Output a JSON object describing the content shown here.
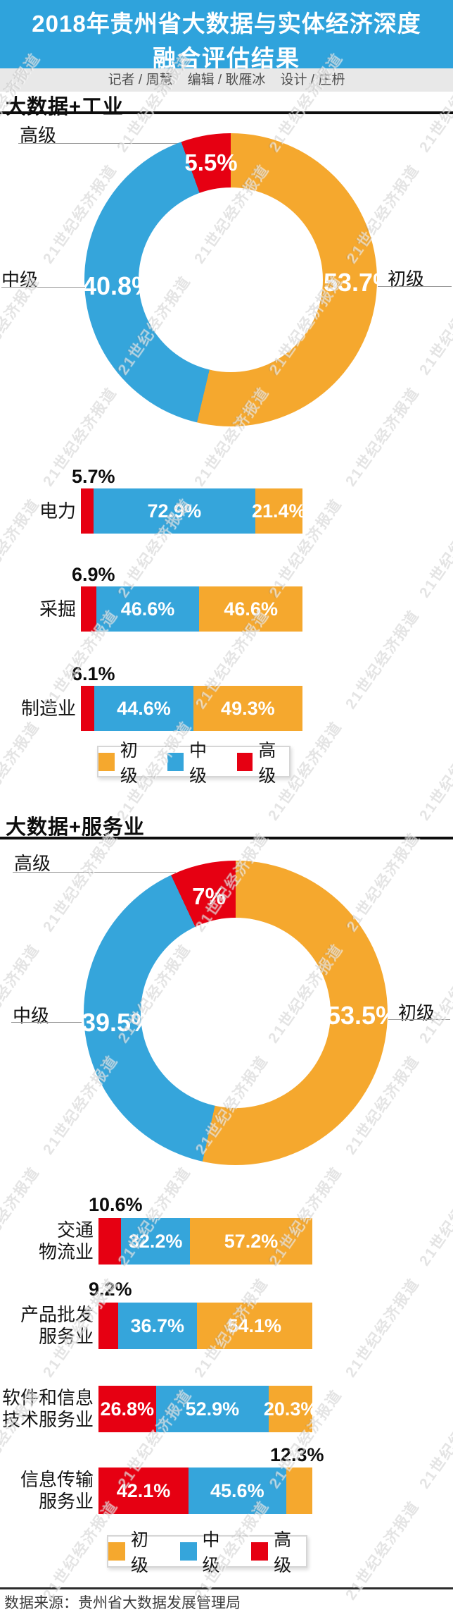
{
  "page": {
    "title_line1": "2018年贵州省大数据与实体经济深度",
    "title_line2": "融合评估结果",
    "credits": "记者 / 周慧    编辑 / 耿雁冰    设计 / 庄枬",
    "watermark_text": "21世纪经济报道",
    "source": "数据来源：贵州省大数据发展管理局"
  },
  "colors": {
    "header_bg": "#2FA3DC",
    "credits_bg": "#E8E8E8",
    "basic_orange": "#F5A82E",
    "intermediate_blue": "#35A5DB",
    "advanced_red": "#E60012",
    "heading_dark": "#0D0D0D"
  },
  "sections": [
    {
      "heading": "大数据+工业"
    },
    {
      "heading": "大数据+服务业"
    }
  ],
  "legend": {
    "items": [
      {
        "label": "初级",
        "color": "#F5A82E"
      },
      {
        "label": "中级",
        "color": "#35A5DB"
      },
      {
        "label": "高级",
        "color": "#E60012"
      }
    ]
  },
  "chart_data": [
    {
      "id": "industry-donut",
      "type": "pie",
      "donut": true,
      "title": "大数据+工业",
      "labels": [
        "初级",
        "中级",
        "高级"
      ],
      "values": [
        53.7,
        40.8,
        5.5
      ],
      "display_values": [
        "53.7%",
        "40.8%",
        "5.5%"
      ],
      "colors": [
        "#F5A82E",
        "#35A5DB",
        "#E60012"
      ],
      "legend_position": "none"
    },
    {
      "id": "industry-bars",
      "type": "bar",
      "stacked": true,
      "orientation": "horizontal",
      "title": "大数据+工业",
      "unit": "%",
      "xlim": [
        0,
        100
      ],
      "categories": [
        "电力",
        "采掘",
        "制造业"
      ],
      "category_lines": [
        [
          "电力"
        ],
        [
          "采掘"
        ],
        [
          "制造业"
        ]
      ],
      "series": [
        {
          "name": "高级",
          "color": "#E60012",
          "values": [
            5.7,
            6.9,
            6.1
          ],
          "display": [
            "5.7%",
            "6.9%",
            "6.1%"
          ]
        },
        {
          "name": "中级",
          "color": "#35A5DB",
          "values": [
            72.9,
            46.6,
            44.6
          ],
          "display": [
            "72.9%",
            "46.6%",
            "44.6%"
          ]
        },
        {
          "name": "初级",
          "color": "#F5A82E",
          "values": [
            21.4,
            46.6,
            49.3
          ],
          "display": [
            "21.4%",
            "46.6%",
            "49.3%"
          ]
        }
      ],
      "legend_position": "bottom"
    },
    {
      "id": "services-donut",
      "type": "pie",
      "donut": true,
      "title": "大数据+服务业",
      "labels": [
        "初级",
        "中级",
        "高级"
      ],
      "values": [
        53.5,
        39.5,
        7
      ],
      "display_values": [
        "53.5%",
        "39.5%",
        "7%"
      ],
      "colors": [
        "#F5A82E",
        "#35A5DB",
        "#E60012"
      ],
      "legend_position": "none"
    },
    {
      "id": "services-bars",
      "type": "bar",
      "stacked": true,
      "orientation": "horizontal",
      "title": "大数据+服务业",
      "unit": "%",
      "xlim": [
        0,
        100
      ],
      "categories": [
        "交通物流业",
        "产品批发服务业",
        "软件和信息技术服务业",
        "信息传输服务业"
      ],
      "category_lines": [
        [
          "交通",
          "物流业"
        ],
        [
          "产品批发",
          "服务业"
        ],
        [
          "软件和信息",
          "技术服务业"
        ],
        [
          "信息传输",
          "服务业"
        ]
      ],
      "series": [
        {
          "name": "高级",
          "color": "#E60012",
          "values": [
            10.6,
            9.2,
            26.8,
            42.1
          ],
          "display": [
            "10.6%",
            "9.2%",
            "26.8%",
            "42.1%"
          ]
        },
        {
          "name": "中级",
          "color": "#35A5DB",
          "values": [
            32.2,
            36.7,
            52.9,
            45.6
          ],
          "display": [
            "32.2%",
            "36.7%",
            "52.9%",
            "45.6%"
          ]
        },
        {
          "name": "初级",
          "color": "#F5A82E",
          "values": [
            57.2,
            54.1,
            20.3,
            12.3
          ],
          "display": [
            "57.2%",
            "54.1%",
            "20.3%",
            "12.3%"
          ]
        }
      ],
      "legend_position": "bottom"
    }
  ]
}
